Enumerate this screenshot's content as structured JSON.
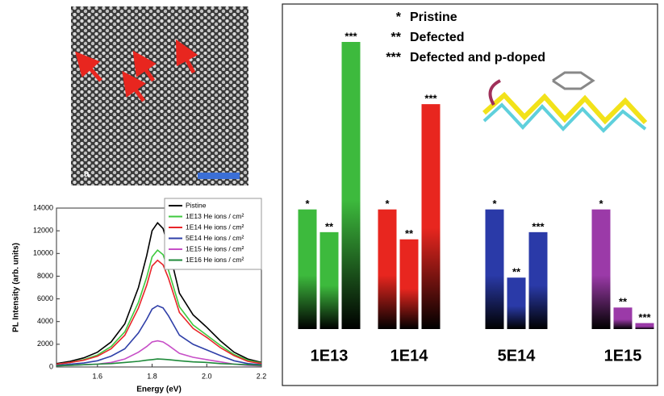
{
  "image_panel": {
    "label": "a"
  },
  "chart_data": [
    {
      "type": "line",
      "xlabel": "Energy (eV)",
      "ylabel": "PL Intensity (arb. units)",
      "x": [
        1.45,
        1.5,
        1.55,
        1.6,
        1.65,
        1.7,
        1.75,
        1.78,
        1.8,
        1.82,
        1.84,
        1.86,
        1.9,
        1.95,
        2.0,
        2.05,
        2.1,
        2.15,
        2.2
      ],
      "xlim": [
        1.45,
        2.2
      ],
      "xticks": [
        1.6,
        1.8,
        {
          "value": 2.0,
          "label": "2.0"
        },
        2.2
      ],
      "ylim": [
        0,
        14000
      ],
      "yticks": [
        0,
        2000,
        4000,
        6000,
        8000,
        10000,
        12000,
        14000
      ],
      "legend": "upper right",
      "series": [
        {
          "name": "Pistine",
          "color": "#000000",
          "values": [
            300,
            500,
            800,
            1300,
            2200,
            3800,
            7000,
            9800,
            12000,
            12700,
            12200,
            10500,
            6500,
            4600,
            3500,
            2300,
            1300,
            700,
            400
          ]
        },
        {
          "name": "1E13 He ions / cm²",
          "color": "#3fc93f",
          "values": [
            250,
            400,
            650,
            1050,
            1800,
            3100,
            5700,
            7900,
            9700,
            10300,
            9900,
            8500,
            5300,
            3700,
            2800,
            1900,
            1100,
            600,
            350
          ]
        },
        {
          "name": "1E14 He ions / cm²",
          "color": "#e8262a",
          "values": [
            250,
            400,
            600,
            950,
            1600,
            2800,
            5200,
            7200,
            8900,
            9400,
            9000,
            7800,
            4800,
            3400,
            2600,
            1700,
            1000,
            500,
            300
          ]
        },
        {
          "name": "5E14 He ions / cm²",
          "color": "#2f3fa8",
          "values": [
            150,
            250,
            350,
            550,
            950,
            1600,
            3000,
            4200,
            5100,
            5400,
            5200,
            4500,
            2800,
            2000,
            1500,
            1000,
            550,
            300,
            200
          ]
        },
        {
          "name": "1E15 He ions / cm²",
          "color": "#c74fc7",
          "values": [
            100,
            150,
            200,
            250,
            400,
            700,
            1300,
            1800,
            2200,
            2300,
            2200,
            1900,
            1200,
            850,
            650,
            450,
            250,
            150,
            100
          ]
        },
        {
          "name": "1E16 He ions / cm²",
          "color": "#1f8a3a",
          "values": [
            100,
            150,
            200,
            250,
            300,
            400,
            500,
            600,
            650,
            700,
            680,
            650,
            550,
            450,
            400,
            300,
            250,
            200,
            150
          ]
        }
      ]
    },
    {
      "type": "bar",
      "categories": [
        "1E13",
        "1E14",
        "5E14",
        "1E15"
      ],
      "colors": [
        "#3dba3d",
        "#e8261f",
        "#2a3aa8",
        "#9b3aa8"
      ],
      "series": [
        {
          "name": "Pristine",
          "symbol": "*",
          "values": [
            100,
            100,
            100,
            100
          ]
        },
        {
          "name": "Defected",
          "symbol": "**",
          "values": [
            81,
            75,
            43,
            18
          ]
        },
        {
          "name": "Defected and p-doped",
          "symbol": "***",
          "values": [
            240,
            188,
            81,
            5
          ]
        }
      ]
    }
  ]
}
